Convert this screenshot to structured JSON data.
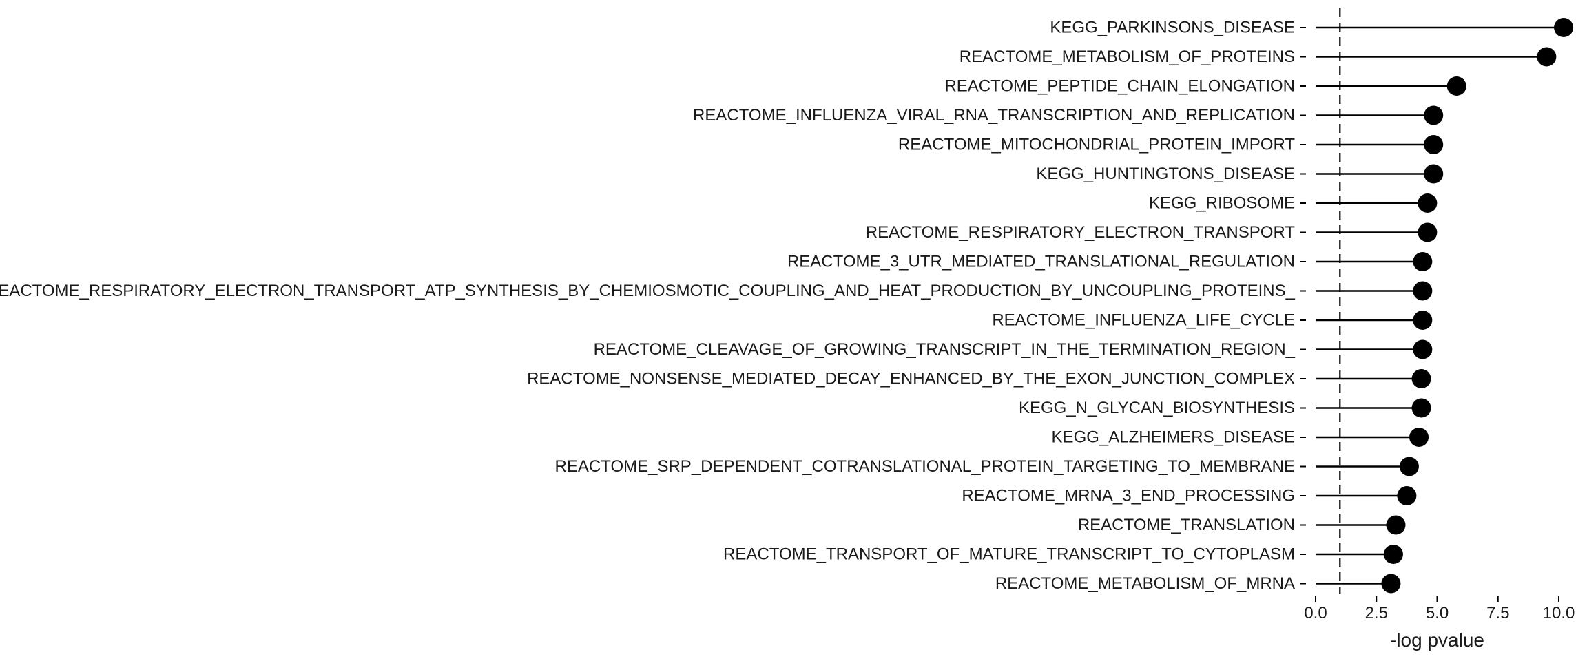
{
  "chart_data": {
    "type": "lollipop",
    "title": "",
    "xlabel": "-log pvalue",
    "ylabel": "",
    "xlim": [
      0,
      10.2
    ],
    "x_ticks": [
      "0.0",
      "2.5",
      "5.0",
      "7.5",
      "10.0"
    ],
    "x_tick_values": [
      0,
      2.5,
      5,
      7.5,
      10
    ],
    "reference_line": {
      "x": 1,
      "style": "dashed"
    },
    "grid": false,
    "legend": "none",
    "point_color": "#000000",
    "categories": [
      "KEGG_PARKINSONS_DISEASE",
      "REACTOME_METABOLISM_OF_PROTEINS",
      "REACTOME_PEPTIDE_CHAIN_ELONGATION",
      "REACTOME_INFLUENZA_VIRAL_RNA_TRANSCRIPTION_AND_REPLICATION",
      "REACTOME_MITOCHONDRIAL_PROTEIN_IMPORT",
      "KEGG_HUNTINGTONS_DISEASE",
      "KEGG_RIBOSOME",
      "REACTOME_RESPIRATORY_ELECTRON_TRANSPORT",
      "REACTOME_3_UTR_MEDIATED_TRANSLATIONAL_REGULATION",
      "REACTOME_RESPIRATORY_ELECTRON_TRANSPORT_ATP_SYNTHESIS_BY_CHEMIOSMOTIC_COUPLING_AND_HEAT_PRODUCTION_BY_UNCOUPLING_PROTEINS_",
      "REACTOME_INFLUENZA_LIFE_CYCLE",
      "REACTOME_CLEAVAGE_OF_GROWING_TRANSCRIPT_IN_THE_TERMINATION_REGION_",
      "REACTOME_NONSENSE_MEDIATED_DECAY_ENHANCED_BY_THE_EXON_JUNCTION_COMPLEX",
      "KEGG_N_GLYCAN_BIOSYNTHESIS",
      "KEGG_ALZHEIMERS_DISEASE",
      "REACTOME_SRP_DEPENDENT_COTRANSLATIONAL_PROTEIN_TARGETING_TO_MEMBRANE",
      "REACTOME_MRNA_3_END_PROCESSING",
      "REACTOME_TRANSLATION",
      "REACTOME_TRANSPORT_OF_MATURE_TRANSCRIPT_TO_CYTOPLASM",
      "REACTOME_METABOLISM_OF_MRNA"
    ],
    "values": [
      10.2,
      9.5,
      5.8,
      4.85,
      4.85,
      4.85,
      4.6,
      4.6,
      4.4,
      4.4,
      4.4,
      4.4,
      4.35,
      4.35,
      4.25,
      3.85,
      3.75,
      3.3,
      3.2,
      3.1
    ]
  }
}
